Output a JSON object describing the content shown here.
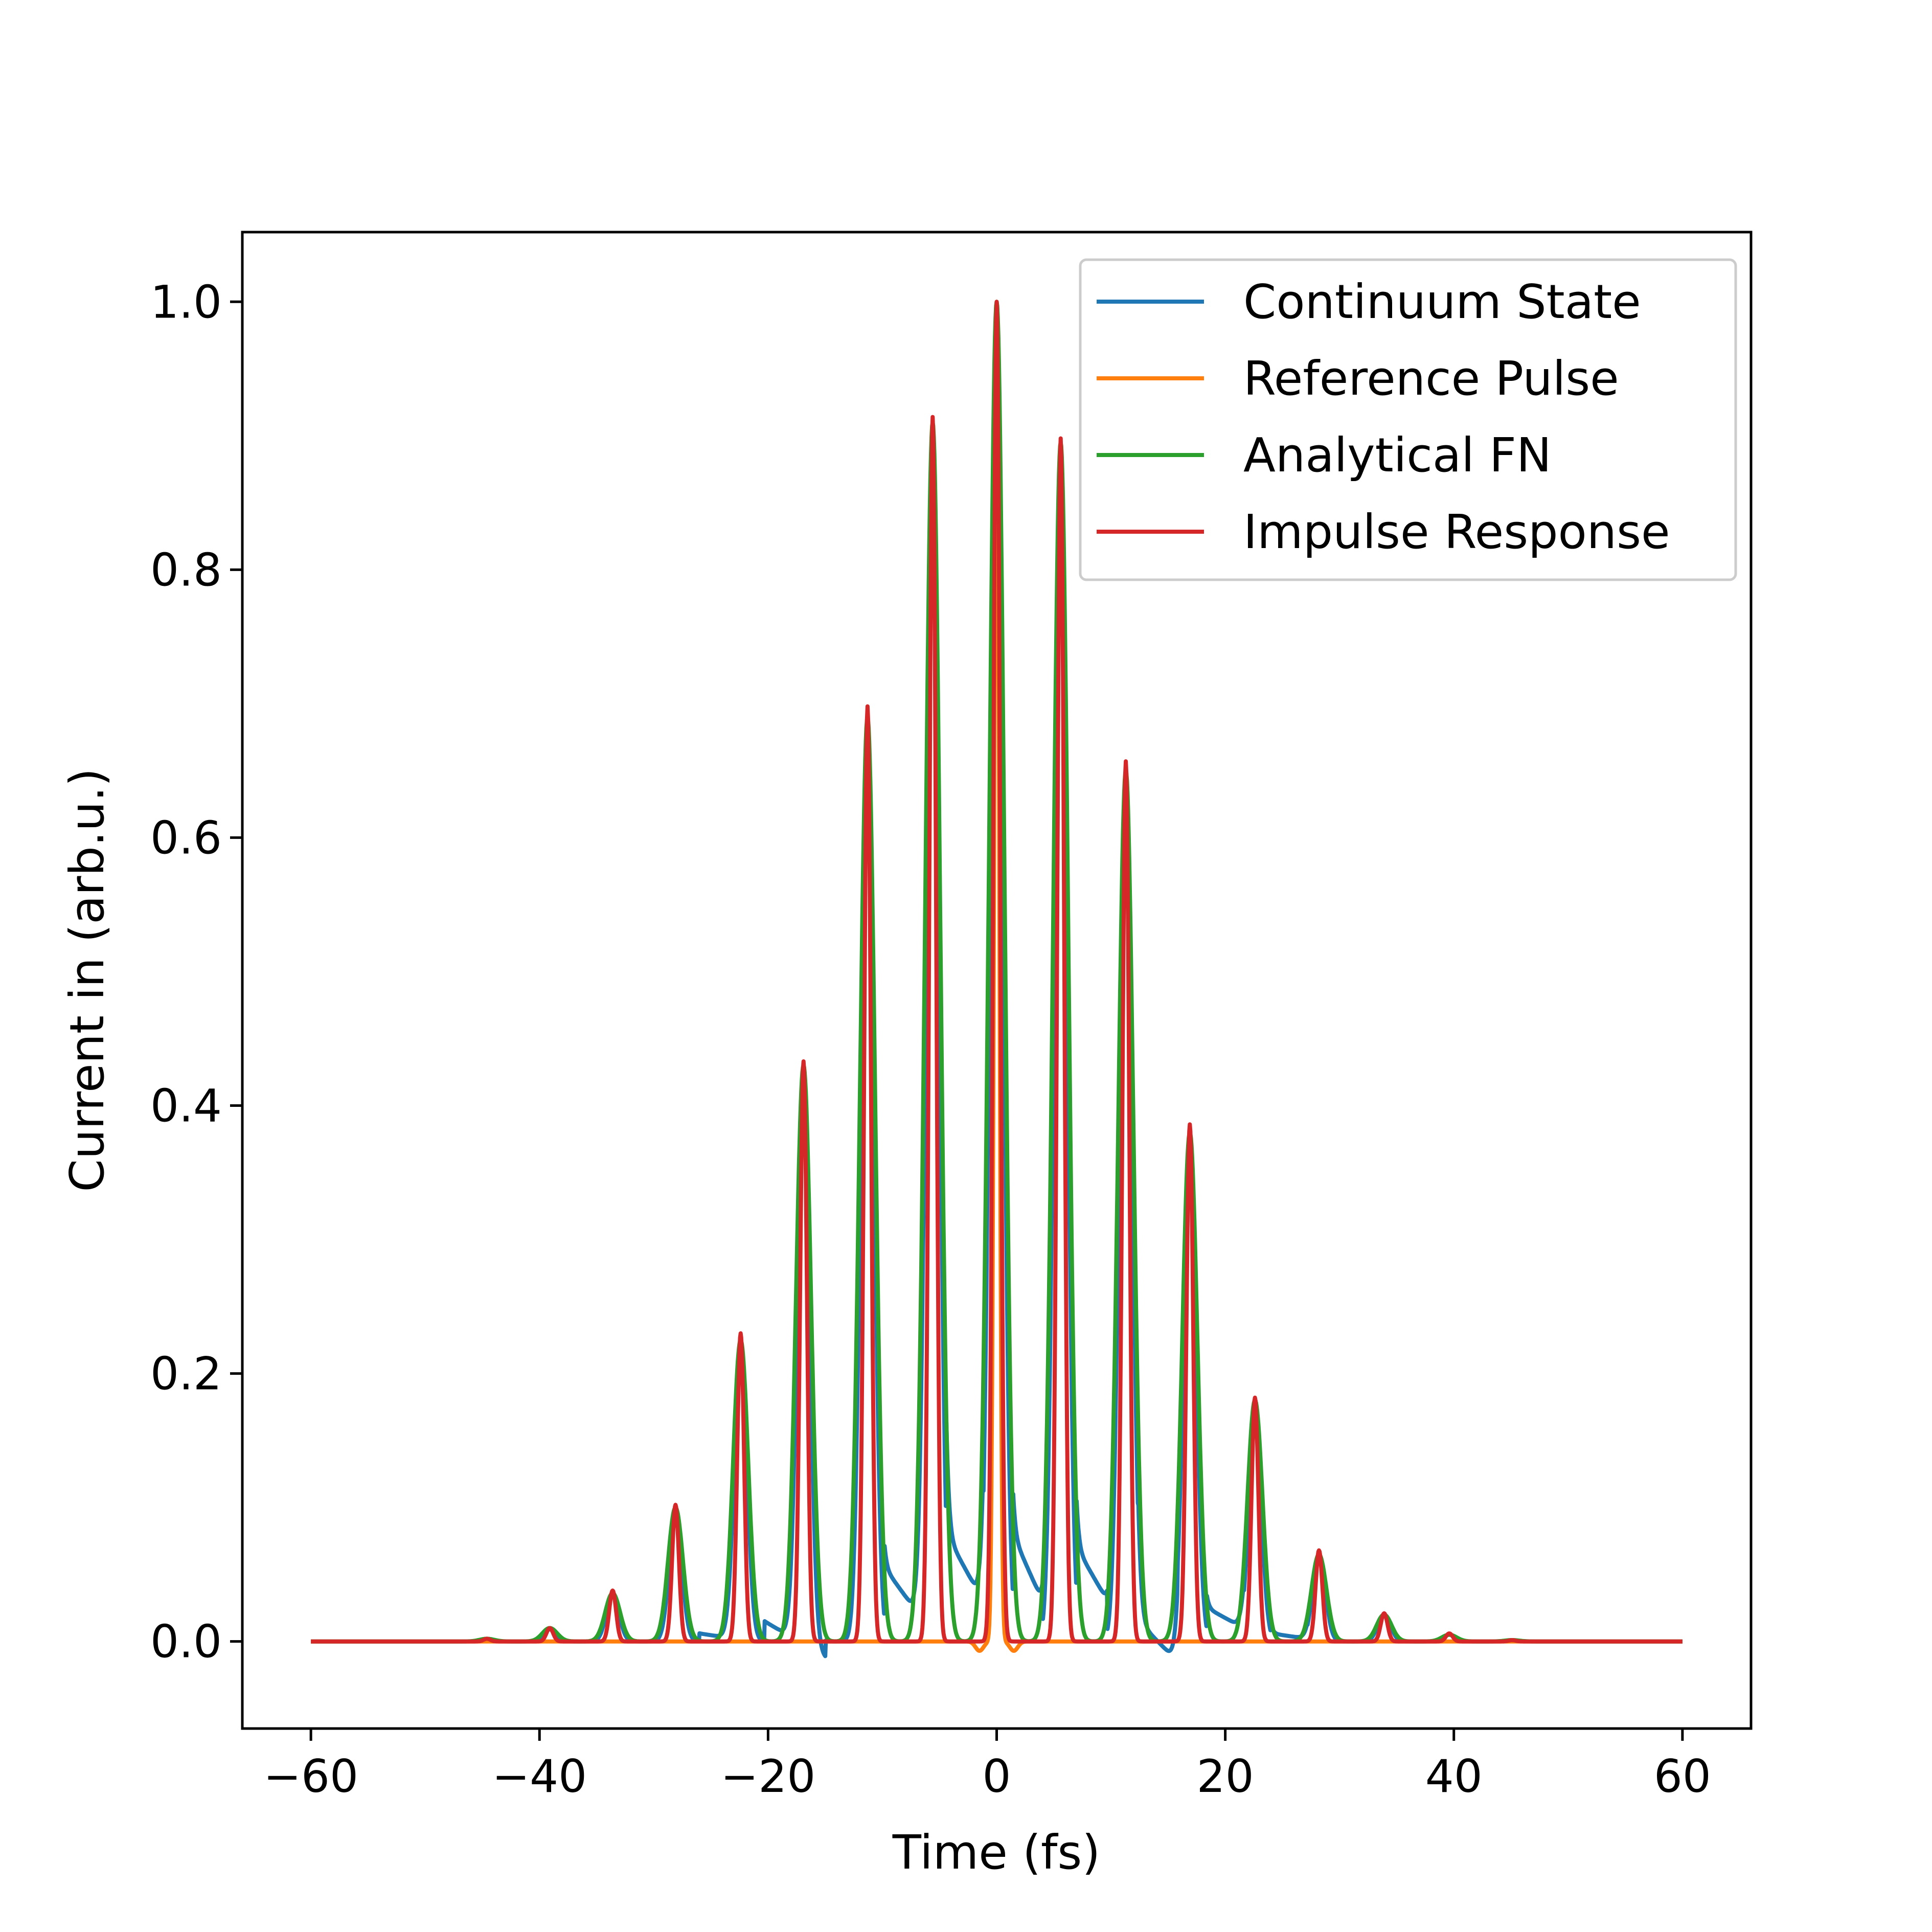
{
  "chart_data": {
    "type": "line",
    "title": "",
    "xlabel": "Time (fs)",
    "ylabel": "Current in (arb.u.)",
    "xlim": [
      -66,
      66
    ],
    "ylim": [
      -0.065,
      1.052
    ],
    "xticks": [
      -60,
      -40,
      -20,
      0,
      20,
      40,
      60
    ],
    "xtick_labels": [
      "−60",
      "−40",
      "−20",
      "0",
      "20",
      "40",
      "60"
    ],
    "yticks": [
      0.0,
      0.2,
      0.4,
      0.6,
      0.8,
      1.0
    ],
    "ytick_labels": [
      "0.0",
      "0.2",
      "0.4",
      "0.6",
      "0.8",
      "1.0"
    ],
    "grid": false,
    "legend_position": "top-right",
    "x_range": [
      -60,
      60
    ],
    "peak_times": [
      -44.6,
      -39.1,
      -33.6,
      -28.1,
      -22.4,
      -16.9,
      -11.3,
      -5.6,
      0.0,
      5.6,
      11.3,
      16.9,
      22.6,
      28.2,
      33.9,
      39.6,
      45.1
    ],
    "series": [
      {
        "name": "Continuum State",
        "color": "#1f77b4",
        "peak_values": [
          0.002,
          0.009,
          0.035,
          0.095,
          0.22,
          0.41,
          0.67,
          0.9,
          1.0,
          0.89,
          0.64,
          0.37,
          0.17,
          0.065,
          0.02,
          0.005,
          0.001
        ],
        "shoulders": [
          {
            "from": -26,
            "to": -23,
            "start": 0.006,
            "end": 0.002
          },
          {
            "from": -20.3,
            "to": -15,
            "start": 0.015,
            "end": -0.012
          },
          {
            "from": -9.8,
            "to": -6.4,
            "start": 0.055,
            "end": 0.015
          },
          {
            "from": -4.4,
            "to": -1.2,
            "start": 0.08,
            "end": 0.03
          },
          {
            "from": 1.4,
            "to": 4.0,
            "start": 0.08,
            "end": 0.03
          },
          {
            "from": 7.0,
            "to": 9.7,
            "start": 0.07,
            "end": 0.03
          },
          {
            "from": 12.4,
            "to": 15.8,
            "start": 0.015,
            "end": -0.015
          },
          {
            "from": 18.4,
            "to": 21.6,
            "start": 0.025,
            "end": 0.01
          },
          {
            "from": 24.0,
            "to": 27.2,
            "start": 0.006,
            "end": 0.002
          }
        ]
      },
      {
        "name": "Reference Pulse",
        "color": "#ff7f0e",
        "center": 0.0,
        "peak_value": 1.0,
        "dips": [
          {
            "x": -1.5,
            "y": -0.007
          },
          {
            "x": 1.5,
            "y": -0.007
          }
        ]
      },
      {
        "name": "Analytical FN",
        "color": "#2ca02c",
        "peak_values": [
          0.002,
          0.01,
          0.036,
          0.1,
          0.225,
          0.43,
          0.69,
          0.91,
          1.0,
          0.895,
          0.65,
          0.38,
          0.18,
          0.065,
          0.02,
          0.005,
          0.001
        ]
      },
      {
        "name": "Impulse Response",
        "color": "#d62728",
        "peak_values": [
          0.002,
          0.01,
          0.038,
          0.102,
          0.23,
          0.433,
          0.698,
          0.914,
          1.0,
          0.898,
          0.657,
          0.386,
          0.182,
          0.068,
          0.021,
          0.006,
          0.001
        ]
      }
    ]
  }
}
